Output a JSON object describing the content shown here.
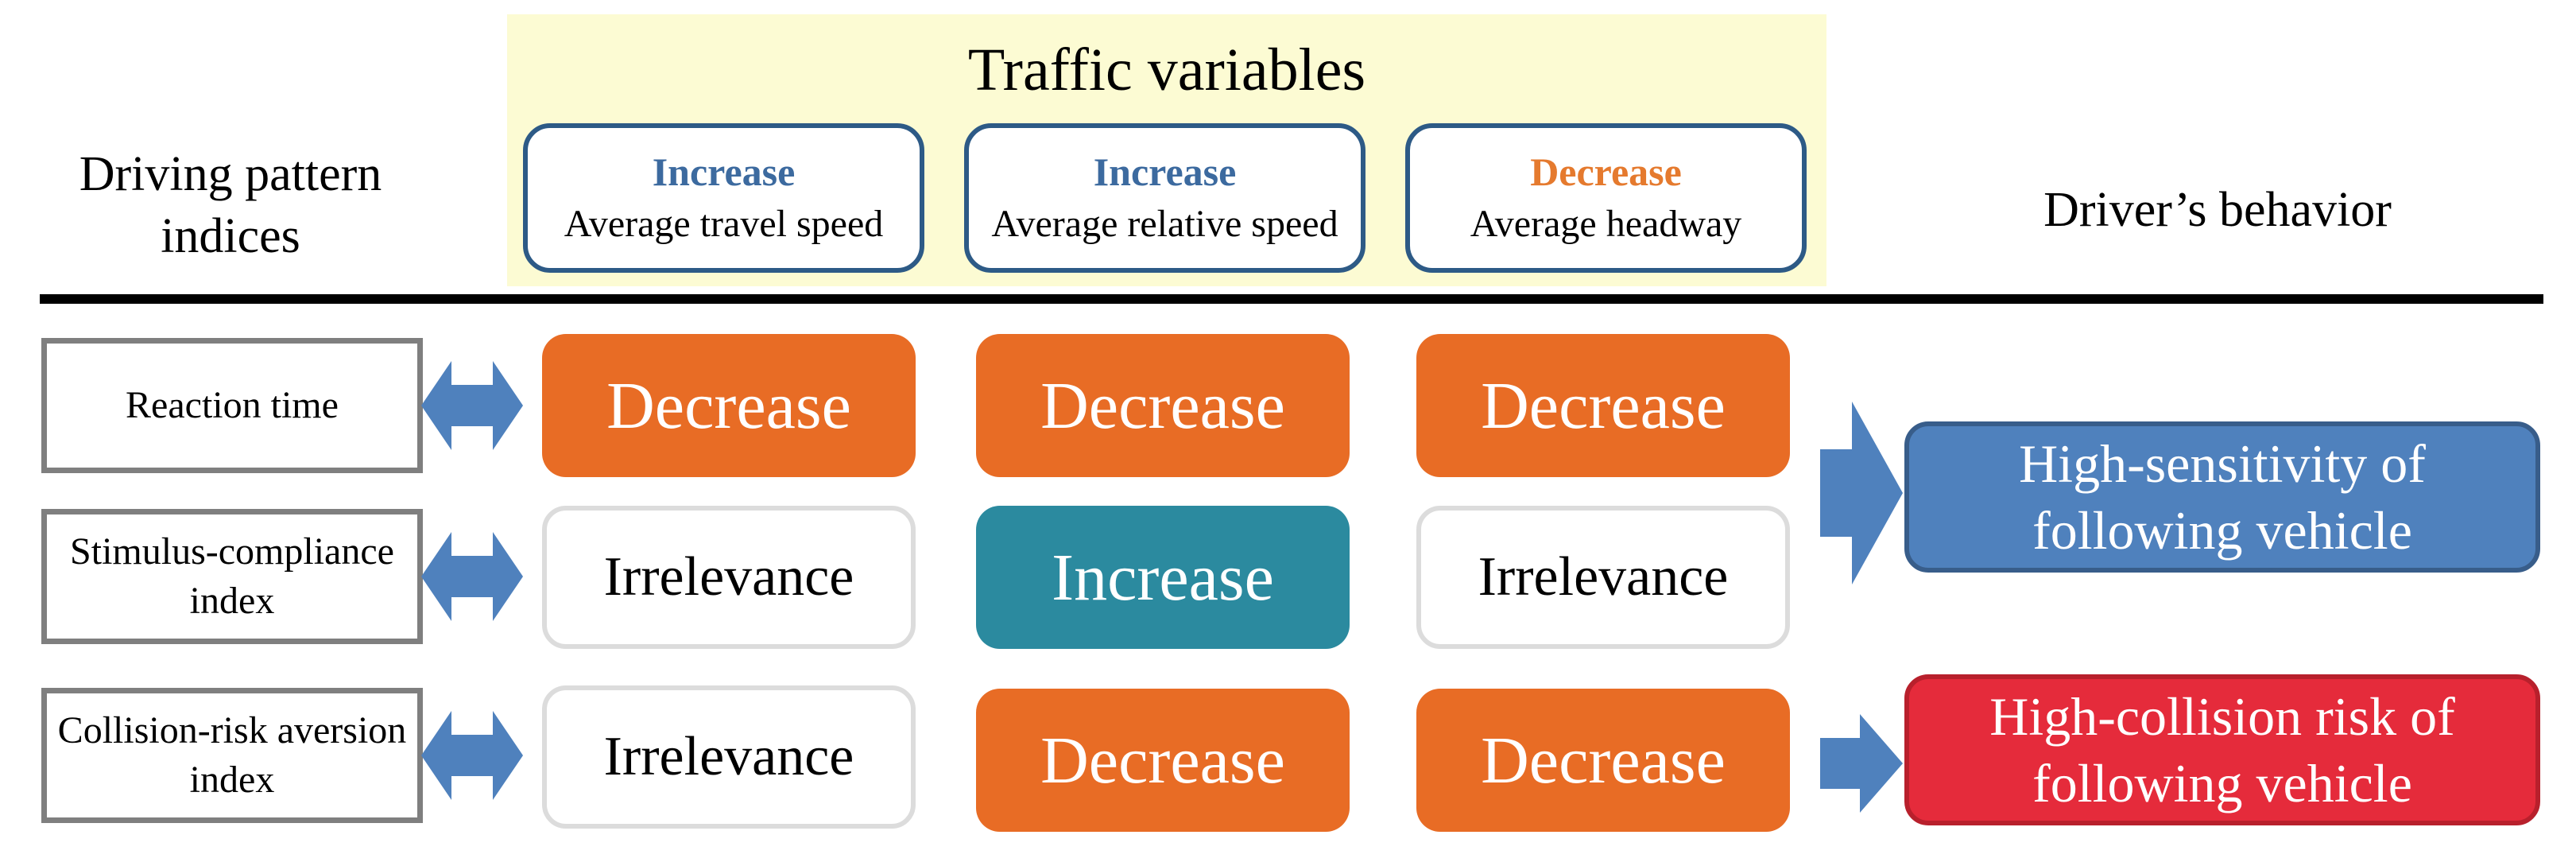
{
  "header": {
    "left_heading": "Driving pattern indices",
    "panel_title": "Traffic variables",
    "right_heading": "Driver’s behavior",
    "variables": [
      {
        "direction": "Increase",
        "label": "Average travel speed",
        "direction_color": "#3c6a9f"
      },
      {
        "direction": "Increase",
        "label": "Average relative speed",
        "direction_color": "#3c6a9f"
      },
      {
        "direction": "Decrease",
        "label": "Average headway",
        "direction_color": "#e57a2e"
      }
    ]
  },
  "rows": [
    {
      "index": "Reaction time",
      "cells": [
        {
          "value": "Decrease",
          "style": "orange"
        },
        {
          "value": "Decrease",
          "style": "orange"
        },
        {
          "value": "Decrease",
          "style": "orange"
        }
      ]
    },
    {
      "index": "Stimulus-compliance index",
      "cells": [
        {
          "value": "Irrelevance",
          "style": "white"
        },
        {
          "value": "Increase",
          "style": "teal"
        },
        {
          "value": "Irrelevance",
          "style": "white"
        }
      ]
    },
    {
      "index": "Collision-risk aversion index",
      "cells": [
        {
          "value": "Irrelevance",
          "style": "white"
        },
        {
          "value": "Decrease",
          "style": "orange"
        },
        {
          "value": "Decrease",
          "style": "orange"
        }
      ]
    }
  ],
  "behaviors": [
    {
      "text": "High-sensitivity of following vehicle",
      "color": "#4f81bd"
    },
    {
      "text": "High-collision risk of following vehicle",
      "color": "#e52b3b"
    }
  ],
  "colors": {
    "orange": "#e86c25",
    "teal": "#2b8a9f",
    "arrow_blue": "#4f81bd",
    "panel_yellow": "#fcfbd3"
  },
  "icons": {
    "double_arrow": "double-headed-arrow-icon",
    "right_arrow": "right-arrow-icon"
  }
}
